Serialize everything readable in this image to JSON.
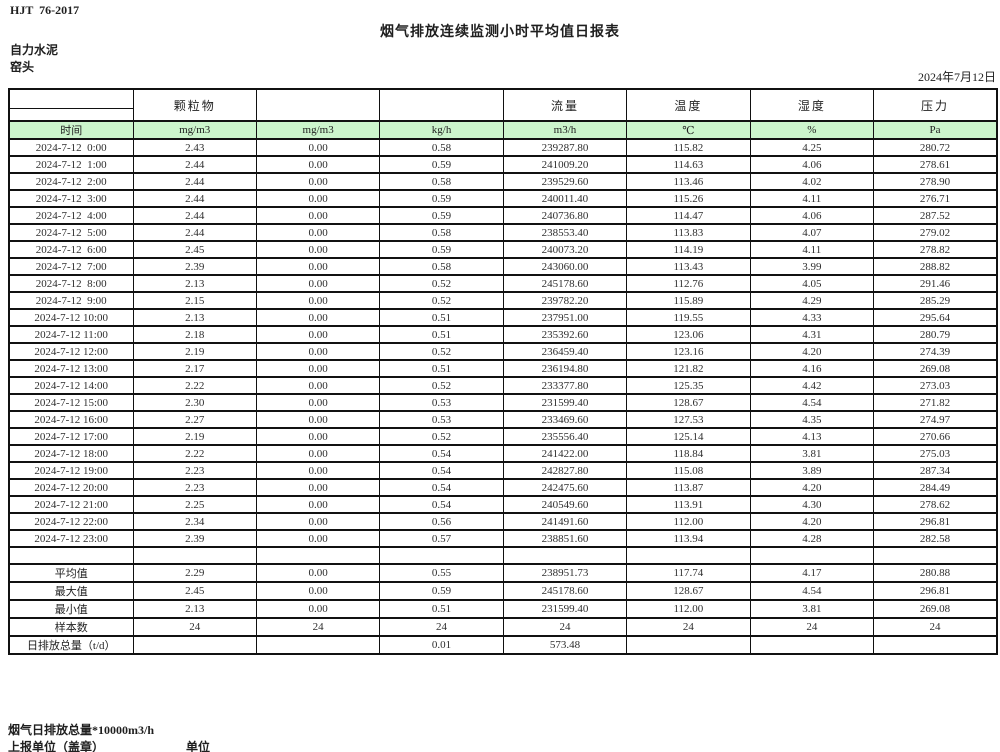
{
  "page": {
    "doc_code": "HJT  76-2017",
    "title": "烟气排放连续监测小时平均值日报表",
    "company": "自力水泥",
    "location": "窑头",
    "date": "2024年7月12日"
  },
  "colors": {
    "header_green": "#ccf5cc",
    "border": "#111111"
  },
  "table": {
    "param_headers": [
      "",
      "颗粒物",
      "",
      "",
      "流量",
      "温度",
      "湿度",
      "压力"
    ],
    "unit_row": [
      "时间",
      "mg/m3",
      "mg/m3",
      "kg/h",
      "m3/h",
      "℃",
      "%",
      "Pa"
    ],
    "rows": [
      [
        "2024-7-12  0:00",
        "2.43",
        "0.00",
        "0.58",
        "239287.80",
        "115.82",
        "4.25",
        "280.72"
      ],
      [
        "2024-7-12  1:00",
        "2.44",
        "0.00",
        "0.59",
        "241009.20",
        "114.63",
        "4.06",
        "278.61"
      ],
      [
        "2024-7-12  2:00",
        "2.44",
        "0.00",
        "0.58",
        "239529.60",
        "113.46",
        "4.02",
        "278.90"
      ],
      [
        "2024-7-12  3:00",
        "2.44",
        "0.00",
        "0.59",
        "240011.40",
        "115.26",
        "4.11",
        "276.71"
      ],
      [
        "2024-7-12  4:00",
        "2.44",
        "0.00",
        "0.59",
        "240736.80",
        "114.47",
        "4.06",
        "287.52"
      ],
      [
        "2024-7-12  5:00",
        "2.44",
        "0.00",
        "0.58",
        "238553.40",
        "113.83",
        "4.07",
        "279.02"
      ],
      [
        "2024-7-12  6:00",
        "2.45",
        "0.00",
        "0.59",
        "240073.20",
        "114.19",
        "4.11",
        "278.82"
      ],
      [
        "2024-7-12  7:00",
        "2.39",
        "0.00",
        "0.58",
        "243060.00",
        "113.43",
        "3.99",
        "288.82"
      ],
      [
        "2024-7-12  8:00",
        "2.13",
        "0.00",
        "0.52",
        "245178.60",
        "112.76",
        "4.05",
        "291.46"
      ],
      [
        "2024-7-12  9:00",
        "2.15",
        "0.00",
        "0.52",
        "239782.20",
        "115.89",
        "4.29",
        "285.29"
      ],
      [
        "2024-7-12 10:00",
        "2.13",
        "0.00",
        "0.51",
        "237951.00",
        "119.55",
        "4.33",
        "295.64"
      ],
      [
        "2024-7-12 11:00",
        "2.18",
        "0.00",
        "0.51",
        "235392.60",
        "123.06",
        "4.31",
        "280.79"
      ],
      [
        "2024-7-12 12:00",
        "2.19",
        "0.00",
        "0.52",
        "236459.40",
        "123.16",
        "4.20",
        "274.39"
      ],
      [
        "2024-7-12 13:00",
        "2.17",
        "0.00",
        "0.51",
        "236194.80",
        "121.82",
        "4.16",
        "269.08"
      ],
      [
        "2024-7-12 14:00",
        "2.22",
        "0.00",
        "0.52",
        "233377.80",
        "125.35",
        "4.42",
        "273.03"
      ],
      [
        "2024-7-12 15:00",
        "2.30",
        "0.00",
        "0.53",
        "231599.40",
        "128.67",
        "4.54",
        "271.82"
      ],
      [
        "2024-7-12 16:00",
        "2.27",
        "0.00",
        "0.53",
        "233469.60",
        "127.53",
        "4.35",
        "274.97"
      ],
      [
        "2024-7-12 17:00",
        "2.19",
        "0.00",
        "0.52",
        "235556.40",
        "125.14",
        "4.13",
        "270.66"
      ],
      [
        "2024-7-12 18:00",
        "2.22",
        "0.00",
        "0.54",
        "241422.00",
        "118.84",
        "3.81",
        "275.03"
      ],
      [
        "2024-7-12 19:00",
        "2.23",
        "0.00",
        "0.54",
        "242827.80",
        "115.08",
        "3.89",
        "287.34"
      ],
      [
        "2024-7-12 20:00",
        "2.23",
        "0.00",
        "0.54",
        "242475.60",
        "113.87",
        "4.20",
        "284.49"
      ],
      [
        "2024-7-12 21:00",
        "2.25",
        "0.00",
        "0.54",
        "240549.60",
        "113.91",
        "4.30",
        "278.62"
      ],
      [
        "2024-7-12 22:00",
        "2.34",
        "0.00",
        "0.56",
        "241491.60",
        "112.00",
        "4.20",
        "296.81"
      ],
      [
        "2024-7-12 23:00",
        "2.39",
        "0.00",
        "0.57",
        "238851.60",
        "113.94",
        "4.28",
        "282.58"
      ]
    ],
    "spacer_row": [
      "",
      "",
      "",
      "",
      "",
      "",
      "",
      ""
    ],
    "summary_rows": [
      [
        "平均值",
        "2.29",
        "0.00",
        "0.55",
        "238951.73",
        "117.74",
        "4.17",
        "280.88"
      ],
      [
        "最大值",
        "2.45",
        "0.00",
        "0.59",
        "245178.60",
        "128.67",
        "4.54",
        "296.81"
      ],
      [
        "最小值",
        "2.13",
        "0.00",
        "0.51",
        "231599.40",
        "112.00",
        "3.81",
        "269.08"
      ],
      [
        "样本数",
        "24",
        "24",
        "24",
        "24",
        "24",
        "24",
        "24"
      ],
      [
        "日排放总量（t/d）",
        "",
        "",
        "0.01",
        "573.48",
        "",
        "",
        ""
      ]
    ]
  },
  "footer": {
    "note": "烟气日排放总量*10000m3/h",
    "report_unit": "上报单位（盖章）",
    "unit_label": "单位"
  }
}
